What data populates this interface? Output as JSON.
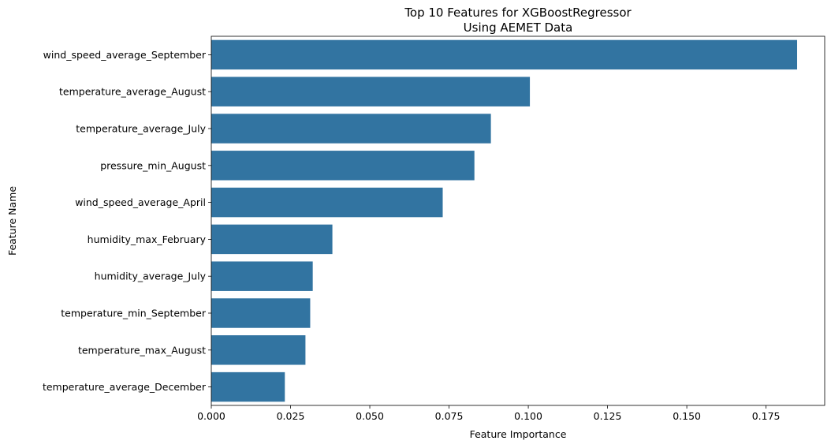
{
  "chart_data": {
    "type": "bar",
    "orientation": "horizontal",
    "title": [
      "Top 10 Features for XGBoostRegressor",
      "Using AEMET Data"
    ],
    "xlabel": "Feature Importance",
    "ylabel": "Feature Name",
    "xlim": [
      0,
      0.1935
    ],
    "xticks": [
      0.0,
      0.025,
      0.05,
      0.075,
      0.1,
      0.125,
      0.15,
      0.175
    ],
    "xtick_labels": [
      "0.000",
      "0.025",
      "0.050",
      "0.075",
      "0.100",
      "0.125",
      "0.150",
      "0.175"
    ],
    "grid": false,
    "bar_color": "#3274a1",
    "categories": [
      "wind_speed_average_September",
      "temperature_average_August",
      "temperature_average_July",
      "pressure_min_August",
      "wind_speed_average_April",
      "humidity_max_February",
      "humidity_average_July",
      "temperature_min_September",
      "temperature_max_August",
      "temperature_average_December"
    ],
    "values": [
      0.1848,
      0.1005,
      0.0882,
      0.083,
      0.073,
      0.0382,
      0.032,
      0.0312,
      0.0297,
      0.0232
    ]
  }
}
